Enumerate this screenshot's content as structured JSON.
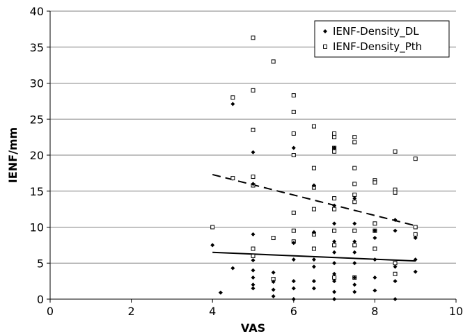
{
  "chart_data": {
    "type": "scatter",
    "xlabel": "VAS",
    "ylabel": "IENF/mm",
    "xlim": [
      0,
      10
    ],
    "ylim": [
      0,
      40
    ],
    "x_ticks": [
      "0",
      "2",
      "4",
      "6",
      "8",
      "10"
    ],
    "y_ticks": [
      "0",
      "5",
      "10",
      "15",
      "20",
      "25",
      "30",
      "35",
      "40"
    ],
    "grid": "horizontal",
    "legend_position": "top-right",
    "colors": {
      "dl": "#000000",
      "pth": "#000000",
      "grid": "#808080"
    },
    "series": [
      {
        "name": "IENF-Density_DL",
        "marker": "diamond-filled",
        "points": [
          [
            4.0,
            7.5
          ],
          [
            4.2,
            0.9
          ],
          [
            4.5,
            27.1
          ],
          [
            4.5,
            4.3
          ],
          [
            5.0,
            20.4
          ],
          [
            5.0,
            16.0
          ],
          [
            5.0,
            9.0
          ],
          [
            5.0,
            5.4
          ],
          [
            5.0,
            4.0
          ],
          [
            5.0,
            3.0
          ],
          [
            5.0,
            2.0
          ],
          [
            5.0,
            1.5
          ],
          [
            5.5,
            3.7
          ],
          [
            5.5,
            2.4
          ],
          [
            5.5,
            1.3
          ],
          [
            5.5,
            0.4
          ],
          [
            6.0,
            21.0
          ],
          [
            6.0,
            7.8
          ],
          [
            6.0,
            5.5
          ],
          [
            6.0,
            2.5
          ],
          [
            6.0,
            1.5
          ],
          [
            6.0,
            0.0
          ],
          [
            6.5,
            15.8
          ],
          [
            6.5,
            9.3
          ],
          [
            6.5,
            5.5
          ],
          [
            6.5,
            4.5
          ],
          [
            6.5,
            2.5
          ],
          [
            6.5,
            1.5
          ],
          [
            7.0,
            21.0
          ],
          [
            7.0,
            13.0
          ],
          [
            7.0,
            10.5
          ],
          [
            7.0,
            8.0
          ],
          [
            7.0,
            6.5
          ],
          [
            7.0,
            5.0
          ],
          [
            7.0,
            3.5
          ],
          [
            7.0,
            2.5
          ],
          [
            7.0,
            1.0
          ],
          [
            7.0,
            0.0
          ],
          [
            7.5,
            14.0
          ],
          [
            7.5,
            10.5
          ],
          [
            7.5,
            8.0
          ],
          [
            7.5,
            6.5
          ],
          [
            7.5,
            5.0
          ],
          [
            7.5,
            3.0
          ],
          [
            7.5,
            2.0
          ],
          [
            7.5,
            1.0
          ],
          [
            8.0,
            9.5
          ],
          [
            8.0,
            8.5
          ],
          [
            8.0,
            5.5
          ],
          [
            8.0,
            3.0
          ],
          [
            8.0,
            1.2
          ],
          [
            8.5,
            11.0
          ],
          [
            8.5,
            9.5
          ],
          [
            8.5,
            4.5
          ],
          [
            8.5,
            2.5
          ],
          [
            8.5,
            0.0
          ],
          [
            9.0,
            8.5
          ],
          [
            9.0,
            5.5
          ],
          [
            9.0,
            3.8
          ]
        ],
        "trend": [
          [
            4.0,
            6.5
          ],
          [
            9.0,
            5.3
          ]
        ]
      },
      {
        "name": "IENF-Density_Pth",
        "marker": "square-open",
        "points": [
          [
            4.0,
            10.0
          ],
          [
            4.5,
            28.0
          ],
          [
            4.5,
            16.8
          ],
          [
            5.0,
            36.3
          ],
          [
            5.0,
            29.0
          ],
          [
            5.0,
            23.5
          ],
          [
            5.0,
            17.0
          ],
          [
            5.0,
            15.8
          ],
          [
            5.0,
            7.0
          ],
          [
            5.0,
            6.0
          ],
          [
            5.5,
            33.0
          ],
          [
            5.5,
            8.5
          ],
          [
            5.5,
            2.8
          ],
          [
            6.0,
            28.3
          ],
          [
            6.0,
            26.0
          ],
          [
            6.0,
            23.0
          ],
          [
            6.0,
            20.0
          ],
          [
            6.0,
            12.0
          ],
          [
            6.0,
            9.5
          ],
          [
            6.0,
            8.0
          ],
          [
            6.5,
            24.0
          ],
          [
            6.5,
            18.2
          ],
          [
            6.5,
            15.5
          ],
          [
            6.5,
            12.5
          ],
          [
            6.5,
            9.0
          ],
          [
            6.5,
            7.0
          ],
          [
            7.0,
            23.0
          ],
          [
            7.0,
            22.5
          ],
          [
            7.0,
            21.0
          ],
          [
            7.0,
            20.5
          ],
          [
            7.0,
            14.0
          ],
          [
            7.0,
            12.5
          ],
          [
            7.0,
            9.5
          ],
          [
            7.0,
            7.5
          ],
          [
            7.0,
            3.0
          ],
          [
            7.5,
            22.5
          ],
          [
            7.5,
            21.8
          ],
          [
            7.5,
            18.2
          ],
          [
            7.5,
            16.0
          ],
          [
            7.5,
            14.5
          ],
          [
            7.5,
            13.5
          ],
          [
            7.5,
            9.5
          ],
          [
            7.5,
            7.5
          ],
          [
            7.5,
            3.0
          ],
          [
            8.0,
            16.5
          ],
          [
            8.0,
            16.2
          ],
          [
            8.0,
            10.5
          ],
          [
            8.0,
            9.5
          ],
          [
            8.0,
            7.0
          ],
          [
            8.5,
            20.5
          ],
          [
            8.5,
            15.2
          ],
          [
            8.5,
            14.8
          ],
          [
            8.5,
            5.0
          ],
          [
            8.5,
            3.5
          ],
          [
            9.0,
            19.5
          ],
          [
            9.0,
            10.0
          ],
          [
            9.0,
            9.0
          ]
        ],
        "trend": [
          [
            4.0,
            17.3
          ],
          [
            9.0,
            10.2
          ]
        ]
      }
    ]
  }
}
